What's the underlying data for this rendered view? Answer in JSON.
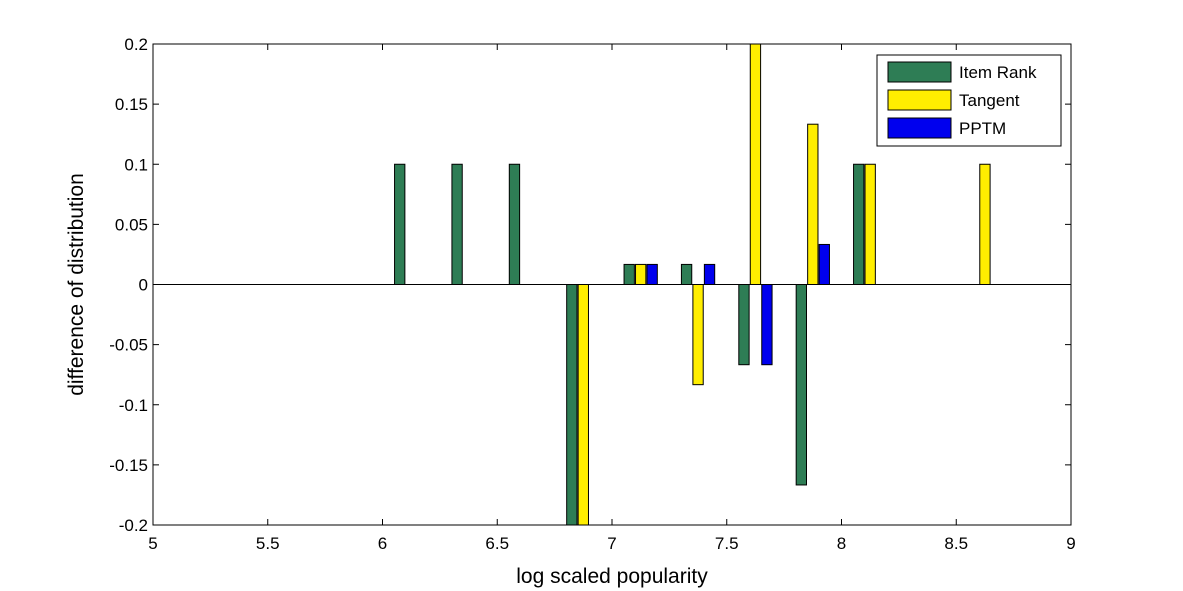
{
  "chart_data": {
    "type": "bar",
    "title": "",
    "xlabel": "log scaled popularity",
    "ylabel": "difference of distribution",
    "xlim": [
      5,
      9
    ],
    "ylim": [
      -0.2,
      0.2
    ],
    "xticks": [
      "5",
      "5.5",
      "6",
      "6.5",
      "7",
      "7.5",
      "8",
      "8.5",
      "9"
    ],
    "yticks": [
      "-0.2",
      "-0.15",
      "-0.1",
      "-0.05",
      "0",
      "0.05",
      "0.1",
      "0.15",
      "0.2"
    ],
    "grid": false,
    "legend_position": "top-right",
    "series": [
      {
        "name": "Item Rank",
        "color": "#2e7d55",
        "points": [
          {
            "x": 6.075,
            "y": 0.1
          },
          {
            "x": 6.325,
            "y": 0.1
          },
          {
            "x": 6.575,
            "y": 0.1
          },
          {
            "x": 6.825,
            "y": -0.2
          },
          {
            "x": 7.075,
            "y": 0.0167
          },
          {
            "x": 7.325,
            "y": 0.0167
          },
          {
            "x": 7.575,
            "y": -0.0667
          },
          {
            "x": 7.825,
            "y": -0.1667
          },
          {
            "x": 8.075,
            "y": 0.1
          }
        ]
      },
      {
        "name": "Tangent",
        "color": "#ffee00",
        "points": [
          {
            "x": 6.875,
            "y": -0.2
          },
          {
            "x": 7.125,
            "y": 0.0167
          },
          {
            "x": 7.375,
            "y": -0.0833
          },
          {
            "x": 7.625,
            "y": 0.2
          },
          {
            "x": 7.875,
            "y": 0.1333
          },
          {
            "x": 8.125,
            "y": 0.1
          },
          {
            "x": 8.625,
            "y": 0.1
          }
        ]
      },
      {
        "name": "PPTM",
        "color": "#0000ee",
        "points": [
          {
            "x": 7.175,
            "y": 0.0167
          },
          {
            "x": 7.425,
            "y": 0.0167
          },
          {
            "x": 7.675,
            "y": -0.0667
          },
          {
            "x": 7.925,
            "y": 0.0333
          }
        ]
      }
    ]
  }
}
